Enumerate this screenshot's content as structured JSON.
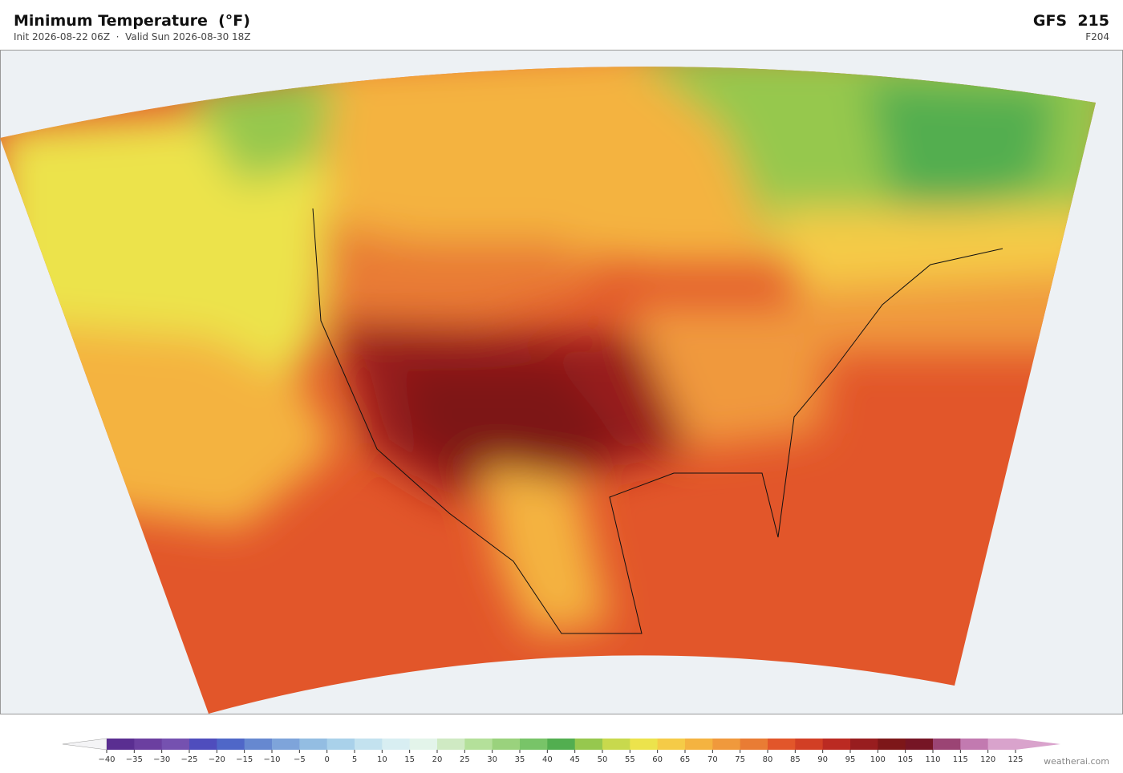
{
  "header": {
    "title": "Minimum Temperature  (°F)",
    "subtitle": "Init 2026-08-22 06Z  ·  Valid Sun 2026-08-30 18Z",
    "model": "GFS  215",
    "forecast_hour": "F204"
  },
  "colorbar": {
    "ticks": [
      {
        "value": -40,
        "label": "−40"
      },
      {
        "value": -35,
        "label": "−35"
      },
      {
        "value": -30,
        "label": "−30"
      },
      {
        "value": -25,
        "label": "−25"
      },
      {
        "value": -20,
        "label": "−20"
      },
      {
        "value": -15,
        "label": "−15"
      },
      {
        "value": -10,
        "label": "−10"
      },
      {
        "value": -5,
        "label": "−5"
      },
      0,
      5,
      10,
      15,
      20,
      25,
      30,
      35,
      40,
      45,
      50,
      55,
      60,
      65,
      70,
      75,
      80,
      85,
      90,
      95,
      100,
      105,
      110,
      115,
      120,
      125
    ],
    "colors": [
      "#5a2e91",
      "#6b3fa0",
      "#7551b0",
      "#4f4dbd",
      "#4f67c8",
      "#6688d0",
      "#7ea4da",
      "#93bde2",
      "#a9d1ea",
      "#c3e2ef",
      "#d8eef2",
      "#e3f4ea",
      "#cfeac3",
      "#b4e09a",
      "#9ad27d",
      "#78c468",
      "#52ae50",
      "#96c84e",
      "#c8d94d",
      "#ece34c",
      "#f5cb47",
      "#f4b340",
      "#f0993c",
      "#e97c34",
      "#e2562a",
      "#d23f25",
      "#bb2a22",
      "#981d1f",
      "#7d1719",
      "#761525",
      "#9b4474",
      "#c27ab0",
      "#d9a3cc"
    ],
    "under_color": "#f4f4f6",
    "over_color": "#d9a3cc"
  },
  "footer": {
    "credit": "weatherai.com"
  }
}
